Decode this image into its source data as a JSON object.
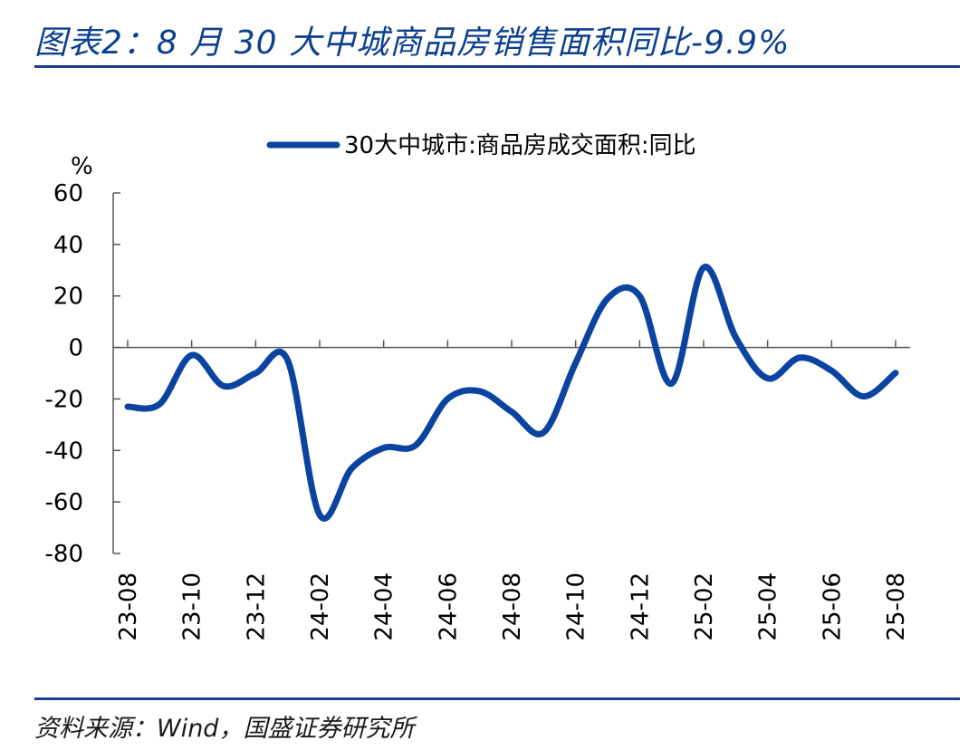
{
  "header": {
    "title": "图表2：8 月 30 大中城商品房销售面积同比-9.9%"
  },
  "footer": {
    "source": "资料来源：Wind，国盛证券研究所"
  },
  "colors": {
    "series": "#0b43a0",
    "rule": "#1a3f8f",
    "axis": "#555555"
  },
  "chart_data": {
    "type": "line",
    "title": "",
    "xlabel": "",
    "ylabel": "%",
    "ylim": [
      -80,
      60
    ],
    "yticks": [
      60,
      40,
      20,
      0,
      -20,
      -40,
      -60,
      -80
    ],
    "xticklabels": [
      "23-08",
      "23-10",
      "23-12",
      "24-02",
      "24-04",
      "24-06",
      "24-08",
      "24-10",
      "24-12",
      "25-02",
      "25-04",
      "25-06",
      "25-08"
    ],
    "legend_position": "top",
    "grid": false,
    "series": [
      {
        "name": "30大中城市:商品房成交面积:同比",
        "x": [
          "23-08",
          "23-09",
          "23-10",
          "23-11",
          "23-12",
          "24-01",
          "24-02",
          "24-03",
          "24-04",
          "24-05",
          "24-06",
          "24-07",
          "24-08",
          "24-09",
          "24-10",
          "24-11",
          "24-12",
          "25-01",
          "25-02",
          "25-03",
          "25-04",
          "25-05",
          "25-06",
          "25-07",
          "25-08"
        ],
        "values": [
          -23,
          -22,
          -3,
          -15,
          -10,
          -5,
          -65,
          -47,
          -39,
          -38,
          -20,
          -17,
          -25,
          -33,
          -6,
          19,
          20,
          -14,
          31,
          4,
          -12,
          -4,
          -9,
          -19,
          -9.9
        ]
      }
    ]
  }
}
